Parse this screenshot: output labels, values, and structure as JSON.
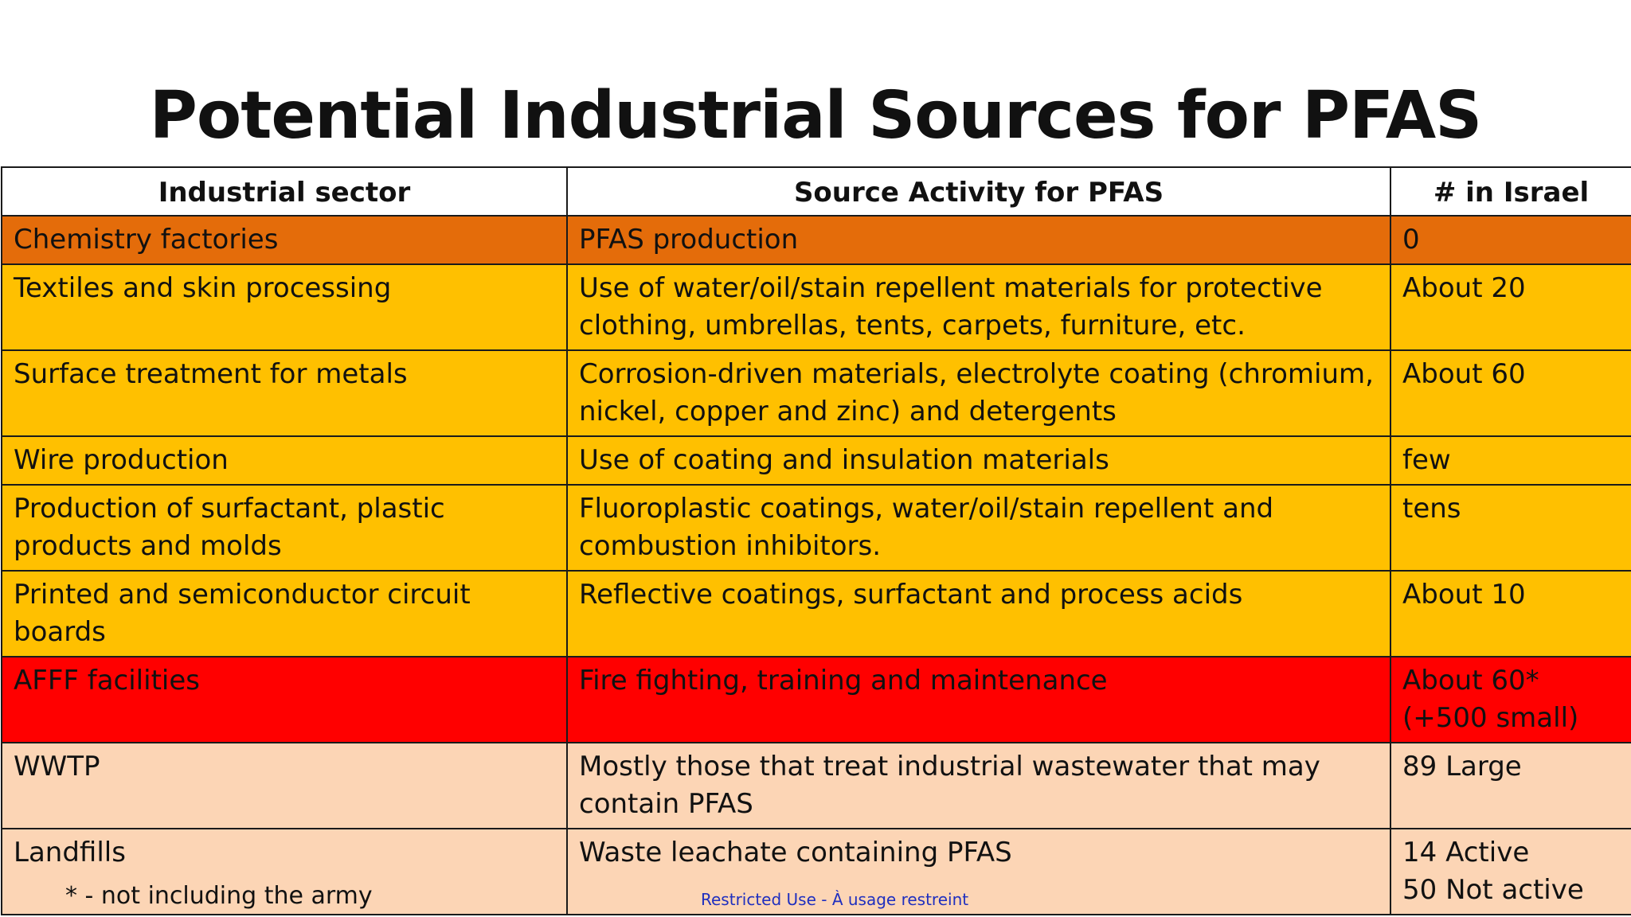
{
  "title": "Potential Industrial Sources for PFAS",
  "table": {
    "headers": [
      "Industrial sector",
      "Source Activity for PFAS",
      "# in Israel"
    ],
    "rows": [
      {
        "sector": "Chemistry factories",
        "activity": "PFAS production",
        "count": "0",
        "color": "#e46c0a"
      },
      {
        "sector": "Textiles and skin processing",
        "activity": "Use of water/oil/stain repellent materials for protective clothing, umbrellas, tents, carpets, furniture, etc.",
        "count": "About 20",
        "color": "#ffc000"
      },
      {
        "sector": "Surface treatment for metals",
        "activity": "Corrosion-driven materials, electrolyte coating (chromium, nickel, copper and zinc) and detergents",
        "count": "About 60",
        "color": "#ffc000"
      },
      {
        "sector": "Wire production",
        "activity": "Use of coating and insulation materials",
        "count": "few",
        "color": "#ffc000"
      },
      {
        "sector": "Production of surfactant, plastic products and molds",
        "activity": "Fluoroplastic coatings, water/oil/stain repellent and combustion inhibitors.",
        "count": "tens",
        "color": "#ffc000"
      },
      {
        "sector": "Printed and semiconductor circuit boards",
        "activity": "Reflective coatings, surfactant and process acids",
        "count": "About 10",
        "color": "#ffc000"
      },
      {
        "sector": "AFFF facilities",
        "activity": "Fire fighting, training and maintenance",
        "count": "About 60*\n(+500 small)",
        "color": "#ff0000"
      },
      {
        "sector": "WWTP",
        "activity": "Mostly those that treat industrial wastewater that may contain PFAS",
        "count": "89 Large",
        "color": "#fcd5b5"
      },
      {
        "sector": "Landfills",
        "activity": "Waste leachate containing PFAS",
        "count": "14 Active\n50 Not active",
        "color": "#fcd5b5"
      }
    ]
  },
  "footnote": "* - not including the army",
  "restricted": "Restricted Use - À usage restreint",
  "colors": {
    "restricted_text": "#1f2fbf",
    "border": "#1a1a1a"
  }
}
